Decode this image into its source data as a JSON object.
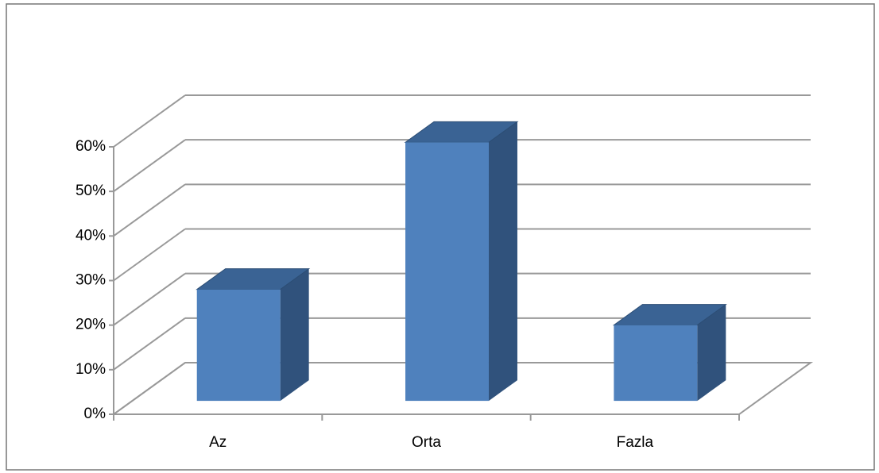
{
  "chart_data": {
    "type": "bar3d",
    "categories": [
      "Az",
      "Orta",
      "Fazla"
    ],
    "values": [
      25,
      58,
      17
    ],
    "color": "#4f81bd",
    "ylim": [
      0,
      60
    ],
    "yticks": [
      {
        "value": 0,
        "label": "0%"
      },
      {
        "value": 10,
        "label": "10%"
      },
      {
        "value": 20,
        "label": "20%"
      },
      {
        "value": 30,
        "label": "30%"
      },
      {
        "value": 40,
        "label": "40%"
      },
      {
        "value": 50,
        "label": "50%"
      },
      {
        "value": 60,
        "label": "60%"
      }
    ],
    "grid": true
  }
}
